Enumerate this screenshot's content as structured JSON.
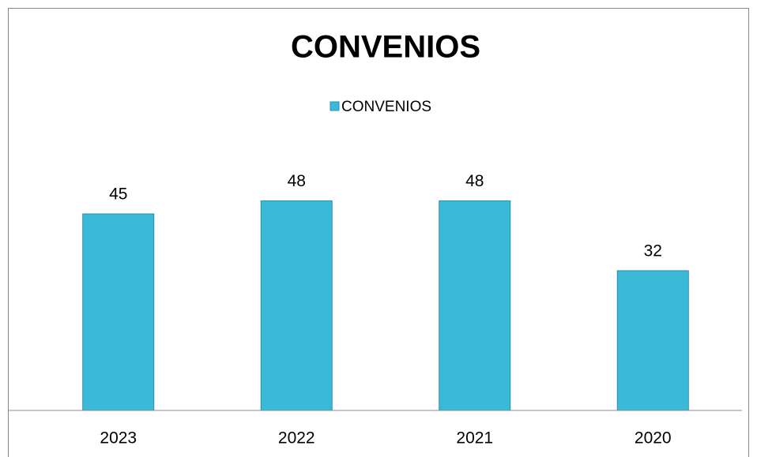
{
  "chart_data": {
    "type": "bar",
    "title": "CONVENIOS",
    "categories": [
      "2023",
      "2022",
      "2021",
      "2020"
    ],
    "series": [
      {
        "name": "CONVENIOS",
        "color": "#3bb9d9",
        "values": [
          45,
          48,
          48,
          32
        ]
      }
    ],
    "ylim": [
      0,
      60
    ],
    "legend": "top"
  }
}
